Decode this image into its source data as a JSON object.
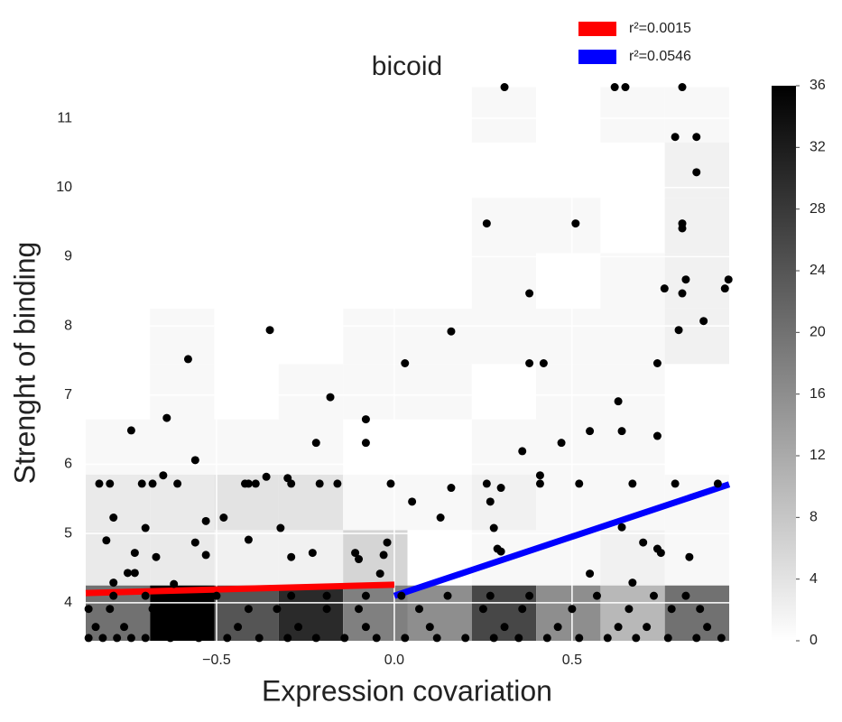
{
  "chart_data": {
    "type": "hist2d_scatter",
    "title": "bicoid",
    "xlabel": "Expression covariation",
    "ylabel": "Strenght of binding",
    "xlim": [
      -0.868,
      0.942
    ],
    "ylim": [
      3.45,
      11.47
    ],
    "xticks": [
      {
        "value": -0.5,
        "label": "−0.5"
      },
      {
        "value": 0,
        "label": "0.0"
      },
      0.5
    ],
    "yticks": [
      4,
      5,
      6,
      7,
      8,
      9,
      10,
      11
    ],
    "grid": true,
    "legend": "upper right",
    "hist": {
      "x_edges": [
        -0.868,
        -0.687,
        -0.506,
        -0.325,
        -0.144,
        0.037,
        0.218,
        0.399,
        0.58,
        0.761,
        0.942
      ],
      "y_edges": [
        3.45,
        4.25,
        5.05,
        5.85,
        6.65,
        7.45,
        8.25,
        9.05,
        9.85,
        10.65,
        11.45
      ],
      "counts": [
        [
          20,
          36,
          24,
          30,
          18,
          16,
          26,
          16,
          10,
          20
        ],
        [
          3,
          3,
          2,
          2,
          6,
          0,
          1,
          1,
          2,
          1
        ],
        [
          3,
          3,
          4,
          4,
          1,
          1,
          2,
          1,
          1,
          1
        ],
        [
          1,
          1,
          1,
          1,
          0,
          0,
          1,
          1,
          1,
          0
        ],
        [
          0,
          1,
          0,
          1,
          1,
          1,
          0,
          1,
          1,
          0
        ],
        [
          0,
          1,
          0,
          0,
          1,
          1,
          1,
          1,
          1,
          2
        ],
        [
          0,
          0,
          0,
          0,
          0,
          0,
          1,
          0,
          1,
          2
        ],
        [
          0,
          0,
          0,
          0,
          0,
          0,
          1,
          1,
          0,
          2
        ],
        [
          0,
          0,
          0,
          0,
          0,
          0,
          0,
          0,
          0,
          2
        ],
        [
          0,
          0,
          0,
          0,
          0,
          0,
          1,
          0,
          1,
          1
        ]
      ],
      "colormap": "gray_r",
      "clim": [
        0,
        36
      ],
      "cticks": [
        0,
        4,
        8,
        12,
        16,
        20,
        24,
        28,
        32,
        36
      ]
    },
    "scatter": {
      "color": "#000000",
      "x": [
        0.31,
        0.62,
        0.65,
        0.81,
        0.79,
        0.85,
        0.85,
        0.26,
        0.51,
        0.81,
        0.81,
        0.76,
        0.81,
        0.82,
        0.38,
        0.93,
        0.94,
        -0.35,
        0.16,
        0.8,
        0.87,
        -0.58,
        0.03,
        0.38,
        0.42,
        0.74,
        -0.18,
        -0.08,
        0.63,
        -0.74,
        -0.64,
        -0.22,
        -0.08,
        0.36,
        0.47,
        0.55,
        0.64,
        0.74,
        -0.56,
        -0.83,
        -0.8,
        -0.71,
        -0.68,
        -0.65,
        -0.61,
        -0.42,
        -0.41,
        -0.39,
        -0.36,
        -0.3,
        -0.29,
        -0.21,
        -0.16,
        -0.01,
        0.26,
        0.3,
        0.41,
        0.41,
        0.52,
        0.67,
        0.79,
        0.91,
        0.05,
        0.27,
        0.16,
        0.13,
        -0.79,
        -0.48,
        -0.53,
        -0.32,
        -0.7,
        0.64,
        0.28,
        -0.81,
        -0.56,
        -0.41,
        -0.02,
        0.29,
        0.3,
        0.7,
        0.74,
        0.75,
        0.83,
        -0.73,
        -0.67,
        -0.53,
        -0.29,
        -0.23,
        -0.11,
        -0.1,
        -0.03,
        -0.04,
        -0.75,
        -0.73,
        0.55,
        -0.79,
        0.67,
        -0.62,
        -0.86,
        -0.82,
        -0.78,
        -0.74,
        -0.7,
        -0.63,
        -0.55,
        -0.47,
        -0.38,
        -0.3,
        -0.22,
        -0.14,
        -0.05,
        0.03,
        0.12,
        0.2,
        0.28,
        0.35,
        0.43,
        0.52,
        0.6,
        0.68,
        0.77,
        0.85,
        0.92,
        -0.84,
        -0.76,
        -0.66,
        -0.44,
        -0.27,
        -0.08,
        0.1,
        0.31,
        0.46,
        0.63,
        0.71,
        0.88,
        -0.86,
        -0.8,
        -0.68,
        -0.6,
        -0.41,
        -0.33,
        -0.19,
        -0.1,
        0.07,
        0.25,
        0.36,
        0.5,
        0.66,
        0.78,
        0.86,
        -0.79,
        -0.7,
        -0.5,
        -0.29,
        -0.19,
        -0.08,
        0.02,
        0.15,
        0.27,
        0.38,
        0.57,
        0.73,
        0.82
      ],
      "values": [
        11.45,
        11.45,
        11.45,
        11.45,
        10.73,
        10.73,
        10.22,
        9.48,
        9.48,
        9.48,
        9.41,
        8.54,
        8.47,
        8.67,
        8.47,
        8.54,
        8.67,
        7.94,
        7.92,
        7.94,
        8.07,
        7.52,
        7.46,
        7.46,
        7.46,
        7.46,
        6.97,
        6.65,
        6.91,
        6.49,
        6.67,
        6.31,
        6.31,
        6.19,
        6.31,
        6.48,
        6.48,
        6.41,
        6.06,
        5.72,
        5.72,
        5.72,
        5.72,
        5.84,
        5.72,
        5.72,
        5.72,
        5.72,
        5.82,
        5.8,
        5.72,
        5.72,
        5.72,
        5.72,
        5.72,
        5.66,
        5.84,
        5.72,
        5.72,
        5.72,
        5.72,
        5.72,
        5.46,
        5.46,
        5.66,
        5.23,
        5.23,
        5.23,
        5.18,
        5.08,
        5.08,
        5.09,
        5.08,
        4.9,
        4.87,
        4.91,
        4.87,
        4.78,
        4.74,
        4.87,
        4.78,
        4.72,
        4.66,
        4.72,
        4.66,
        4.69,
        4.66,
        4.72,
        4.72,
        4.63,
        4.69,
        4.42,
        4.43,
        4.43,
        4.42,
        4.29,
        4.29,
        4.27,
        3.49,
        3.49,
        3.49,
        3.49,
        3.49,
        3.49,
        3.49,
        3.49,
        3.49,
        3.49,
        3.49,
        3.49,
        3.49,
        3.49,
        3.49,
        3.49,
        3.49,
        3.49,
        3.49,
        3.49,
        3.49,
        3.49,
        3.49,
        3.49,
        3.49,
        3.65,
        3.65,
        3.65,
        3.65,
        3.65,
        3.65,
        3.65,
        3.65,
        3.65,
        3.65,
        3.65,
        3.65,
        3.91,
        3.91,
        3.91,
        3.91,
        3.91,
        3.91,
        3.91,
        3.91,
        3.91,
        3.91,
        3.91,
        3.91,
        3.91,
        3.91,
        3.91,
        4.1,
        4.1,
        4.1,
        4.1,
        4.1,
        4.1,
        4.1,
        4.1,
        4.1,
        4.1,
        4.1,
        4.1,
        4.1
      ]
    },
    "series": [
      {
        "name": "r²=0.0015",
        "color": "#ff0000",
        "x": [
          -0.868,
          0
        ],
        "values": [
          4.14,
          4.26
        ]
      },
      {
        "name": "r²=0.0546",
        "color": "#0000ff",
        "x": [
          0,
          0.942
        ],
        "values": [
          4.1,
          5.71
        ]
      }
    ]
  }
}
